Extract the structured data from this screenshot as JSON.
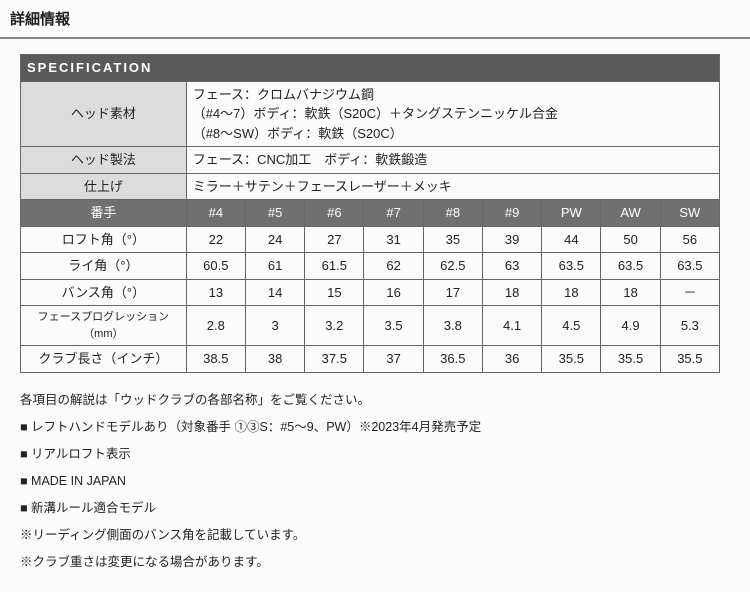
{
  "title": "詳細情報",
  "spec_header": "SPECIFICATION",
  "head_rows": [
    {
      "label": "ヘッド素材",
      "value": "フェース：クロムバナジウム鋼\n（#4～7）ボディ：軟鉄（S20C）＋タングステンニッケル合金\n（#8～SW）ボディ：軟鉄（S20C）"
    },
    {
      "label": "ヘッド製法",
      "value": "フェース：CNC加工　ボディ：軟鉄鍛造"
    },
    {
      "label": "仕上げ",
      "value": "ミラー＋サテン＋フェースレーザー＋メッキ"
    }
  ],
  "club_header_label": "番手",
  "clubs": [
    "#4",
    "#5",
    "#6",
    "#7",
    "#8",
    "#9",
    "PW",
    "AW",
    "SW"
  ],
  "spec_rows": [
    {
      "label": "ロフト角（°）",
      "vals": [
        "22",
        "24",
        "27",
        "31",
        "35",
        "39",
        "44",
        "50",
        "56"
      ]
    },
    {
      "label": "ライ角（°）",
      "vals": [
        "60.5",
        "61",
        "61.5",
        "62",
        "62.5",
        "63",
        "63.5",
        "63.5",
        "63.5"
      ]
    },
    {
      "label": "バンス角（°）",
      "vals": [
        "13",
        "14",
        "15",
        "16",
        "17",
        "18",
        "18",
        "18",
        "－"
      ]
    },
    {
      "label": "フェースプログレッション（mm）",
      "vals": [
        "2.8",
        "3",
        "3.2",
        "3.5",
        "3.8",
        "4.1",
        "4.5",
        "4.9",
        "5.3"
      ]
    },
    {
      "label": "クラブ長さ（インチ）",
      "vals": [
        "38.5",
        "38",
        "37.5",
        "37",
        "36.5",
        "36",
        "35.5",
        "35.5",
        "35.5"
      ]
    }
  ],
  "notes": {
    "intro": "各項目の解説は「ウッドクラブの各部名称」をご覧ください。",
    "bullets": [
      "レフトハンドモデルあり（対象番手 ①③S：#5～9、PW）※2023年4月発売予定",
      "リアルロフト表示",
      "MADE IN JAPAN",
      "新溝ルール適合モデル"
    ],
    "asterisks": [
      "リーディング側面のバンス角を記載しています。",
      "クラブ重さは変更になる場合があります。"
    ]
  }
}
